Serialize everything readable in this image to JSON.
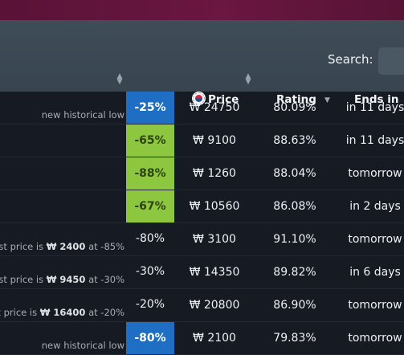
{
  "search": {
    "label": "Search:",
    "value": ""
  },
  "columns": {
    "percent": "%",
    "price": "Price",
    "rating": "Rating",
    "ends_in": "Ends in"
  },
  "rows": [
    {
      "note": "new historical low",
      "note_prefix": "",
      "note_price": "",
      "note_suffix": "",
      "percent": "-25%",
      "percent_style": "blue",
      "price": "₩ 24750",
      "rating": "80.09%",
      "ends_in": "in 11 days"
    },
    {
      "note": "",
      "note_prefix": "",
      "note_price": "",
      "note_suffix": "",
      "percent": "-65%",
      "percent_style": "green",
      "price": "₩ 9100",
      "rating": "88.63%",
      "ends_in": "in 11 days"
    },
    {
      "note": "",
      "note_prefix": "",
      "note_price": "",
      "note_suffix": "",
      "percent": "-88%",
      "percent_style": "green",
      "price": "₩ 1260",
      "rating": "88.04%",
      "ends_in": "tomorrow"
    },
    {
      "note": "",
      "note_prefix": "",
      "note_price": "",
      "note_suffix": "",
      "percent": "-67%",
      "percent_style": "green",
      "price": "₩ 10560",
      "rating": "86.08%",
      "ends_in": "in 2 days"
    },
    {
      "note": "",
      "note_prefix": "est price is ",
      "note_price": "₩ 2400",
      "note_suffix": " at -85%",
      "percent": "-80%",
      "percent_style": "plain",
      "price": "₩ 3100",
      "rating": "91.10%",
      "ends_in": "tomorrow"
    },
    {
      "note": "",
      "note_prefix": "est price is ",
      "note_price": "₩ 9450",
      "note_suffix": " at -30%",
      "percent": "-30%",
      "percent_style": "plain",
      "price": "₩ 14350",
      "rating": "89.82%",
      "ends_in": "in 6 days"
    },
    {
      "note": "",
      "note_prefix": "st price is ",
      "note_price": "₩ 16400",
      "note_suffix": " at -20%",
      "percent": "-20%",
      "percent_style": "plain",
      "price": "₩ 20800",
      "rating": "86.90%",
      "ends_in": "tomorrow"
    },
    {
      "note": "new historical low",
      "note_prefix": "",
      "note_price": "",
      "note_suffix": "",
      "percent": "-80%",
      "percent_style": "blue",
      "price": "₩ 2100",
      "rating": "79.83%",
      "ends_in": "tomorrow"
    }
  ],
  "colors": {
    "header_bg": "#3f4d58",
    "top_band": "#6a1741",
    "badge_blue": "#1e6fc4",
    "badge_green": "#8dc63f",
    "table_bg": "#161a22"
  },
  "icons": [
    "sort-icon",
    "sort-desc-icon",
    "korea-flag-icon"
  ]
}
